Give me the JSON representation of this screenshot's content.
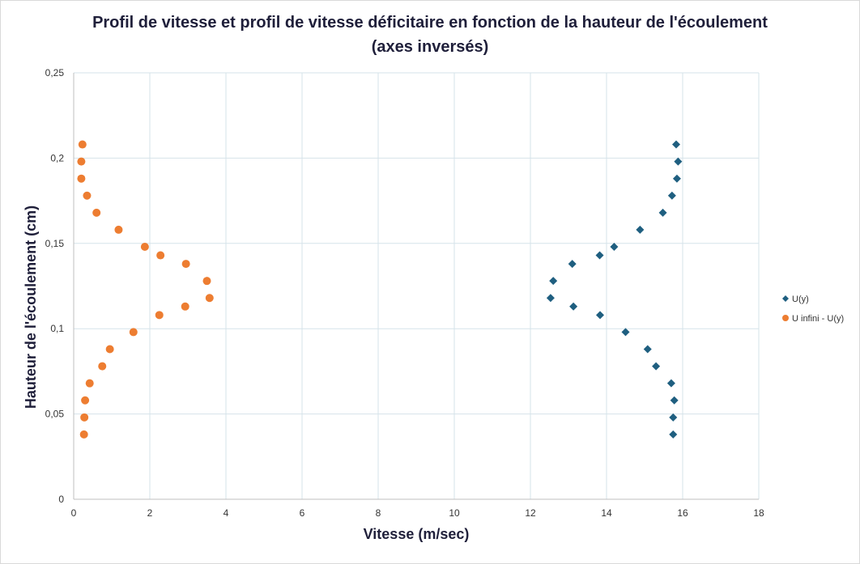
{
  "chart_data": {
    "type": "scatter",
    "title": "Profil de vitesse et profil de vitesse déficitaire en fonction de la hauteur de l'écoulement",
    "subtitle": "(axes inversés)",
    "xlabel": "Vitesse (m/sec)",
    "ylabel": "Hauteur de l'écoulement (cm)",
    "xlim": [
      0,
      18
    ],
    "ylim": [
      0,
      0.25
    ],
    "xticks": [
      "0",
      "2",
      "4",
      "6",
      "8",
      "10",
      "12",
      "14",
      "16",
      "18"
    ],
    "yticks": [
      "0",
      "0,05",
      "0,1",
      "0,15",
      "0,2",
      "0,25"
    ],
    "grid": true,
    "legend_position": "right",
    "series": [
      {
        "name": "U(y)",
        "marker": "diamond",
        "color": "#1f5f80",
        "points": [
          [
            15.75,
            0.038
          ],
          [
            15.75,
            0.048
          ],
          [
            15.78,
            0.058
          ],
          [
            15.7,
            0.068
          ],
          [
            15.3,
            0.078
          ],
          [
            15.08,
            0.088
          ],
          [
            14.5,
            0.098
          ],
          [
            13.83,
            0.108
          ],
          [
            13.13,
            0.113
          ],
          [
            12.53,
            0.118
          ],
          [
            12.6,
            0.128
          ],
          [
            13.1,
            0.138
          ],
          [
            13.82,
            0.143
          ],
          [
            14.2,
            0.148
          ],
          [
            14.88,
            0.158
          ],
          [
            15.48,
            0.168
          ],
          [
            15.72,
            0.178
          ],
          [
            15.85,
            0.188
          ],
          [
            15.88,
            0.198
          ],
          [
            15.83,
            0.208
          ]
        ]
      },
      {
        "name": "U infini - U(y)",
        "marker": "circle",
        "color": "#ed7d31",
        "points": [
          [
            0.27,
            0.038
          ],
          [
            0.28,
            0.048
          ],
          [
            0.3,
            0.058
          ],
          [
            0.42,
            0.068
          ],
          [
            0.75,
            0.078
          ],
          [
            0.95,
            0.088
          ],
          [
            1.57,
            0.098
          ],
          [
            2.25,
            0.108
          ],
          [
            2.93,
            0.113
          ],
          [
            3.57,
            0.118
          ],
          [
            3.5,
            0.128
          ],
          [
            2.95,
            0.138
          ],
          [
            2.28,
            0.143
          ],
          [
            1.87,
            0.148
          ],
          [
            1.18,
            0.158
          ],
          [
            0.6,
            0.168
          ],
          [
            0.35,
            0.178
          ],
          [
            0.2,
            0.188
          ],
          [
            0.2,
            0.198
          ],
          [
            0.23,
            0.208
          ]
        ]
      }
    ]
  }
}
